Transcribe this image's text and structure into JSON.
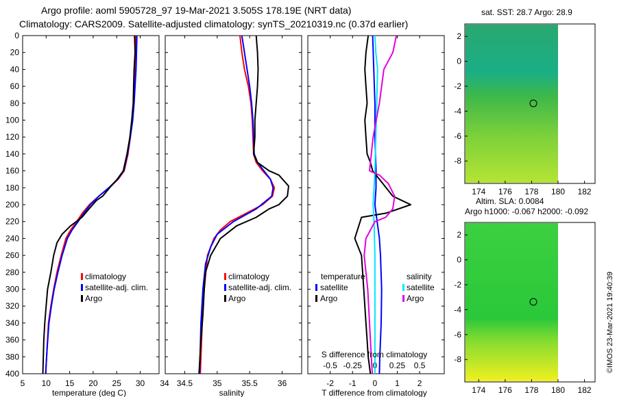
{
  "header": {
    "line1": "Argo profile: aoml 5905728_97 19-Mar-2021 3.505S 178.19E (NRT data)",
    "line2": "Climatology: CARS2009. Satellite-adjusted climatology: synTS_20210319.nc (0.37d earlier)"
  },
  "watermark": "©IMOS 23-Mar-2021 19:40:39",
  "colors": {
    "climatology": "#ff0000",
    "satellite_adj": "#0000ff",
    "argo": "#000000",
    "sat_temp_diff": "#00e6ff",
    "sal_diff": "#e000e0"
  },
  "chart_data": [
    {
      "type": "line",
      "id": "temperature",
      "xlabel": "temperature (deg C)",
      "ylabel": "",
      "xlim": [
        5,
        34
      ],
      "ylim": [
        400,
        0
      ],
      "xticks": [
        5,
        10,
        15,
        20,
        25,
        30
      ],
      "yticks": [
        0,
        20,
        40,
        60,
        80,
        100,
        120,
        140,
        160,
        180,
        200,
        220,
        240,
        260,
        280,
        300,
        320,
        340,
        360,
        380,
        400
      ],
      "legend": [
        "climatology",
        "satellite-adj. clim.",
        "Argo"
      ],
      "series": [
        {
          "name": "climatology",
          "color": "#ff0000",
          "x": [
            29.0,
            29.0,
            28.9,
            28.8,
            28.6,
            28.3,
            27.9,
            27.4,
            26.6,
            25.3,
            23.4,
            21.2,
            19.2,
            17.7,
            16.5,
            15.2,
            14.2,
            13.2,
            12.3,
            11.6,
            11.0,
            10.5,
            10.2,
            9.9
          ],
          "y": [
            0,
            20,
            40,
            60,
            80,
            100,
            120,
            140,
            160,
            170,
            180,
            190,
            200,
            210,
            220,
            230,
            240,
            260,
            280,
            300,
            320,
            340,
            370,
            400
          ]
        },
        {
          "name": "satellite-adj. clim.",
          "color": "#0000ff",
          "x": [
            29.3,
            29.2,
            29.1,
            28.9,
            28.7,
            28.4,
            27.9,
            27.3,
            26.5,
            25.2,
            23.3,
            21.2,
            19.4,
            18.0,
            16.8,
            15.5,
            14.5,
            13.4,
            12.5,
            11.7,
            11.1,
            10.6,
            10.2,
            9.9
          ],
          "y": [
            0,
            20,
            40,
            60,
            80,
            100,
            120,
            140,
            160,
            170,
            180,
            190,
            200,
            210,
            220,
            230,
            240,
            260,
            280,
            300,
            320,
            340,
            370,
            400
          ]
        },
        {
          "name": "Argo",
          "color": "#000000",
          "x": [
            28.8,
            28.9,
            28.7,
            28.6,
            28.5,
            28.2,
            27.8,
            27.2,
            26.4,
            25.1,
            23.5,
            22.0,
            20.7,
            19.1,
            17.6,
            15.2,
            13.4,
            12.3,
            11.6,
            11.0,
            10.3,
            10.0,
            9.7,
            9.5,
            9.4,
            9.3
          ],
          "y": [
            0,
            20,
            40,
            60,
            80,
            100,
            120,
            140,
            160,
            170,
            180,
            190,
            195,
            205,
            215,
            225,
            235,
            245,
            260,
            280,
            300,
            320,
            340,
            360,
            380,
            400
          ]
        }
      ]
    },
    {
      "type": "line",
      "id": "salinity",
      "xlabel": "salinity",
      "xlim": [
        34.2,
        36.3
      ],
      "ylim": [
        400,
        0
      ],
      "xticks": [
        34.5,
        35,
        35.5,
        36
      ],
      "xtick_labels": [
        "34.5",
        "35",
        "35.5",
        "36"
      ],
      "legend": [
        "climatology",
        "satellite-adj. clim.",
        "Argo"
      ],
      "series": [
        {
          "name": "climatology",
          "color": "#ff0000",
          "x": [
            35.35,
            35.38,
            35.42,
            35.48,
            35.52,
            35.54,
            35.55,
            35.56,
            35.6,
            35.7,
            35.82,
            35.88,
            35.85,
            35.7,
            35.45,
            35.2,
            35.05,
            34.95,
            34.85,
            34.8,
            34.77,
            34.74
          ],
          "y": [
            0,
            20,
            40,
            60,
            80,
            100,
            120,
            140,
            150,
            160,
            170,
            180,
            190,
            200,
            210,
            220,
            230,
            240,
            260,
            300,
            340,
            400
          ]
        },
        {
          "name": "satellite-adj. clim.",
          "color": "#0000ff",
          "x": [
            35.38,
            35.42,
            35.46,
            35.5,
            35.53,
            35.55,
            35.56,
            35.57,
            35.62,
            35.72,
            35.82,
            35.86,
            35.84,
            35.6,
            35.25,
            35.0,
            34.9,
            34.82,
            34.78,
            34.75,
            34.73
          ],
          "y": [
            0,
            20,
            40,
            60,
            80,
            100,
            120,
            140,
            150,
            160,
            170,
            180,
            190,
            205,
            220,
            235,
            250,
            270,
            300,
            340,
            400
          ]
        },
        {
          "name": "Argo",
          "color": "#000000",
          "x": [
            35.6,
            35.62,
            35.63,
            35.62,
            35.6,
            35.58,
            35.58,
            35.56,
            35.62,
            35.8,
            35.95,
            36.1,
            36.08,
            35.95,
            35.8,
            35.6,
            35.3,
            35.05,
            34.9,
            34.82,
            34.8,
            34.78,
            34.75,
            34.72
          ],
          "y": [
            0,
            20,
            40,
            60,
            80,
            100,
            120,
            140,
            150,
            160,
            165,
            178,
            190,
            200,
            205,
            215,
            225,
            240,
            260,
            280,
            300,
            330,
            360,
            400
          ]
        }
      ]
    },
    {
      "type": "line",
      "id": "difference",
      "xlabel": "T difference from climatology",
      "x2label": "S difference from climatology",
      "xlim": [
        -3,
        3.1
      ],
      "x2lim": [
        -0.75,
        0.775
      ],
      "ylim": [
        400,
        0
      ],
      "xticks": [
        -2,
        -1,
        0,
        1,
        2
      ],
      "xtick_labels": [
        "-2",
        "-1",
        "0",
        "1",
        "2"
      ],
      "x2ticks": [
        -0.5,
        -0.25,
        0,
        0.25,
        0.5
      ],
      "x2tick_labels": [
        "-0.5",
        "-0.25",
        "0",
        "0.25",
        "0.5"
      ],
      "legend_titles": [
        "temperature",
        "salinity"
      ],
      "legend": [
        "satellite",
        "Argo",
        "satellite",
        "Argo"
      ],
      "series": [
        {
          "name": "T satellite",
          "axis": "T",
          "color": "#0000ff",
          "x": [
            -0.1,
            -0.05,
            0.0,
            0.0,
            0.05,
            0.05,
            0.0,
            0.05,
            0.1,
            0.15,
            0.2,
            0.25,
            0.3,
            0.28,
            0.25,
            0.22,
            0.2
          ],
          "y": [
            0,
            40,
            80,
            120,
            160,
            180,
            200,
            210,
            220,
            230,
            240,
            260,
            300,
            340,
            360,
            380,
            400
          ]
        },
        {
          "name": "T Argo",
          "axis": "T",
          "color": "#000000",
          "x": [
            -0.3,
            -0.4,
            -0.45,
            -0.4,
            -0.35,
            -0.45,
            -0.4,
            -0.35,
            -0.2,
            -0.1,
            0.2,
            0.5,
            0.8,
            1.2,
            1.6,
            0.5,
            -0.6,
            -0.9,
            -0.6,
            -0.5,
            -0.4,
            -0.35,
            -0.3,
            -0.2
          ],
          "y": [
            0,
            20,
            40,
            60,
            80,
            100,
            120,
            140,
            150,
            160,
            170,
            180,
            190,
            195,
            200,
            210,
            215,
            240,
            260,
            300,
            340,
            360,
            380,
            400
          ]
        },
        {
          "name": "S satellite",
          "axis": "S",
          "color": "#00e6ff",
          "x": [
            0.0,
            0.01,
            0.03,
            0.02,
            0.01,
            0.0,
            -0.01,
            -0.02,
            -0.01,
            0.0,
            0.0,
            0.0,
            0.0,
            0.0
          ],
          "y": [
            0,
            20,
            40,
            80,
            120,
            160,
            180,
            200,
            220,
            260,
            300,
            340,
            380,
            400
          ]
        },
        {
          "name": "S Argo",
          "axis": "S",
          "color": "#e000e0",
          "x": [
            0.24,
            0.2,
            0.1,
            0.05,
            -0.02,
            -0.05,
            -0.06,
            0.05,
            0.15,
            0.22,
            0.2,
            0.12,
            0.0,
            -0.1,
            -0.12,
            -0.08,
            -0.06,
            -0.05,
            -0.04,
            -0.03
          ],
          "y": [
            0,
            20,
            40,
            80,
            120,
            150,
            160,
            165,
            175,
            190,
            205,
            215,
            220,
            240,
            260,
            300,
            340,
            360,
            380,
            400
          ]
        }
      ]
    }
  ],
  "maps": [
    {
      "title": "sat. SST: 28.7 Argo: 28.9",
      "xticks": [
        "174",
        "176",
        "178",
        "180",
        "182"
      ],
      "yticks": [
        "2",
        "0",
        "-2",
        "-4",
        "-6",
        "-8"
      ],
      "color_top": "#1aa67a",
      "color_bottom": "#b8e830",
      "marker_lon": 178.19,
      "marker_lat": -3.505
    },
    {
      "title1": "Altim. SLA: 0.0084",
      "title2": "Argo h1000: -0.067 h2000: -0.092",
      "xticks": [
        "174",
        "176",
        "178",
        "180",
        "182"
      ],
      "yticks": [
        "2",
        "0",
        "-2",
        "-4",
        "-6",
        "-8"
      ],
      "color_top": "#1ec83c",
      "color_bottom": "#e8f028",
      "marker_lon": 178.19,
      "marker_lat": -3.505
    }
  ]
}
